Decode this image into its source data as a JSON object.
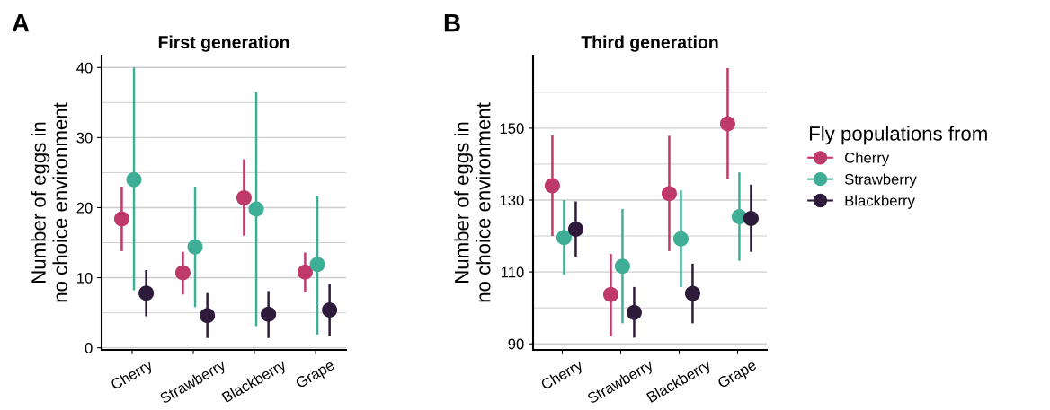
{
  "chart_data": [
    {
      "type": "scatter",
      "title": "First generation",
      "ylabel": "Number of eggs in\nno choice environment",
      "annotations": [
        "A"
      ],
      "categories": [
        "Cherry",
        "Strawberry",
        "Blackberry",
        "Grape"
      ],
      "series": [
        {
          "color": "#c0396b",
          "values": [
            18.4,
            10.7,
            21.4,
            10.8
          ],
          "errors": [
            [
              13.8,
              23
            ],
            [
              7.6,
              13.7
            ],
            [
              16,
              26.9
            ],
            [
              7.9,
              13.6
            ]
          ]
        },
        {
          "color": "#3fae96",
          "values": [
            24,
            14.4,
            19.8,
            11.9
          ],
          "errors": [
            [
              8.2,
              40
            ],
            [
              5.8,
              23
            ],
            [
              3.1,
              36.5
            ],
            [
              1.9,
              21.7
            ]
          ]
        },
        {
          "color": "#2e1a3a",
          "values": [
            7.8,
            4.6,
            4.8,
            5.4
          ],
          "errors": [
            [
              4.5,
              11.1
            ],
            [
              1.4,
              7.8
            ],
            [
              1.4,
              8.1
            ],
            [
              1.7,
              9.1
            ]
          ]
        }
      ],
      "ylim": [
        -0.3,
        41.7
      ],
      "yticks": [
        0,
        10,
        20,
        30,
        40
      ],
      "grid": "y",
      "marker": "circle"
    },
    {
      "type": "scatter",
      "title": "Third generation",
      "ylabel": "Number of eggs in\nno choice environment",
      "annotations": [
        "B"
      ],
      "legend_title": "Fly populations from",
      "categories": [
        "Cherry",
        "Strawberry",
        "Blackberry",
        "Grape"
      ],
      "series": [
        {
          "name": "Cherry",
          "color": "#c0396b",
          "values": [
            134,
            103.7,
            131.8,
            151.2
          ],
          "errors": [
            [
              120,
              148
            ],
            [
              92.1,
              115
            ],
            [
              115.8,
              147.9
            ],
            [
              135.8,
              166.7
            ]
          ]
        },
        {
          "name": "Strawberry",
          "color": "#3fae96",
          "values": [
            119.6,
            111.6,
            119.2,
            125.4
          ],
          "errors": [
            [
              109.2,
              130
            ],
            [
              95.7,
              127.5
            ],
            [
              105.8,
              132.7
            ],
            [
              113.1,
              137.7
            ]
          ]
        },
        {
          "name": "Blackberry",
          "color": "#2e1a3a",
          "values": [
            121.9,
            98.7,
            104,
            124.9
          ],
          "errors": [
            [
              114.2,
              129.6
            ],
            [
              91.7,
              105.8
            ],
            [
              95.7,
              112.3
            ],
            [
              115.6,
              134.3
            ]
          ]
        }
      ],
      "ylim": [
        88.3,
        170.2
      ],
      "yticks": [
        90,
        110,
        130,
        150
      ],
      "grid": "y",
      "marker": "circle",
      "legend": "right"
    }
  ]
}
